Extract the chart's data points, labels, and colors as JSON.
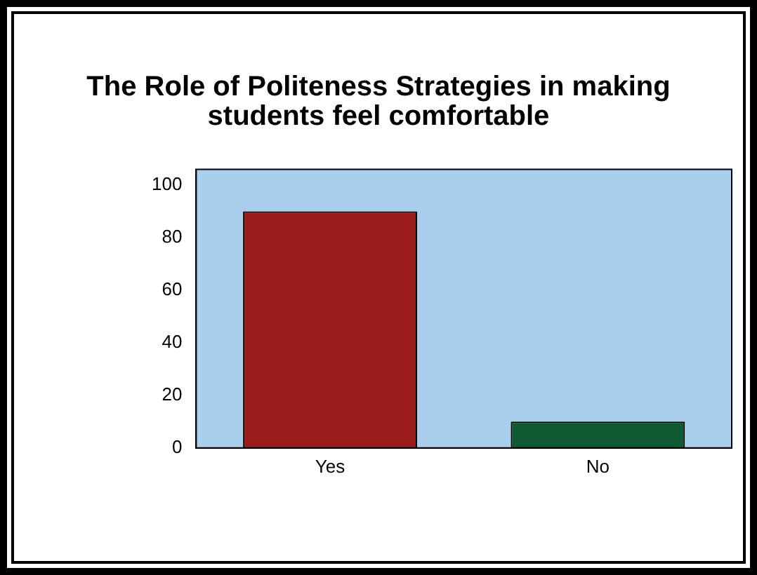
{
  "chart_data": {
    "type": "bar",
    "title": "The Role of Politeness Strategies in making students feel comfortable",
    "categories": [
      "Yes",
      "No"
    ],
    "values": [
      90,
      10
    ],
    "colors": [
      "#9b1a1a",
      "#0f5a32"
    ],
    "ylim": [
      0,
      106
    ],
    "yticks": [
      0,
      20,
      40,
      60,
      80,
      100
    ],
    "grid": false,
    "legend": false
  }
}
